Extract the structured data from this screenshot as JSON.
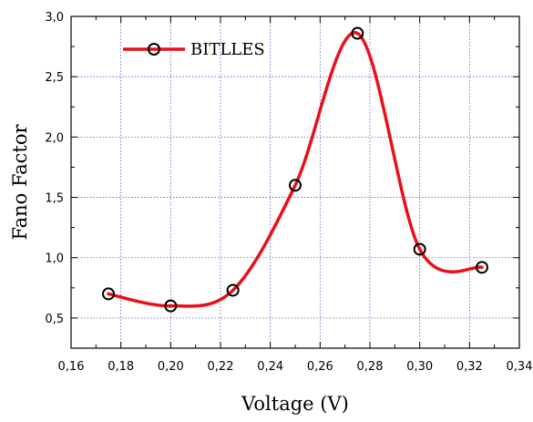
{
  "chart_data": {
    "type": "line",
    "title": "",
    "xlabel": "Voltage (V)",
    "ylabel": "Fano Factor",
    "xlim": [
      0.16,
      0.34
    ],
    "ylim": [
      0.25,
      3.0
    ],
    "x_ticks": [
      0.16,
      0.18,
      0.2,
      0.22,
      0.24,
      0.26,
      0.28,
      0.3,
      0.32,
      0.34
    ],
    "x_tick_labels": [
      "0,16",
      "0,18",
      "0,20",
      "0,22",
      "0,24",
      "0,26",
      "0,28",
      "0,30",
      "0,32",
      "0,34"
    ],
    "y_ticks": [
      0.5,
      1.0,
      1.5,
      2.0,
      2.5,
      3.0
    ],
    "y_tick_labels": [
      "0,5",
      "1,0",
      "1,5",
      "2,0",
      "2,5",
      "3,0"
    ],
    "grid": true,
    "legend_position": "top-left",
    "series": [
      {
        "name": "BITLLES",
        "color": "#e8111b",
        "marker": "open-circle",
        "x": [
          0.175,
          0.2,
          0.225,
          0.25,
          0.275,
          0.3,
          0.325
        ],
        "y": [
          0.7,
          0.6,
          0.73,
          1.6,
          2.86,
          1.07,
          0.92
        ]
      }
    ]
  }
}
